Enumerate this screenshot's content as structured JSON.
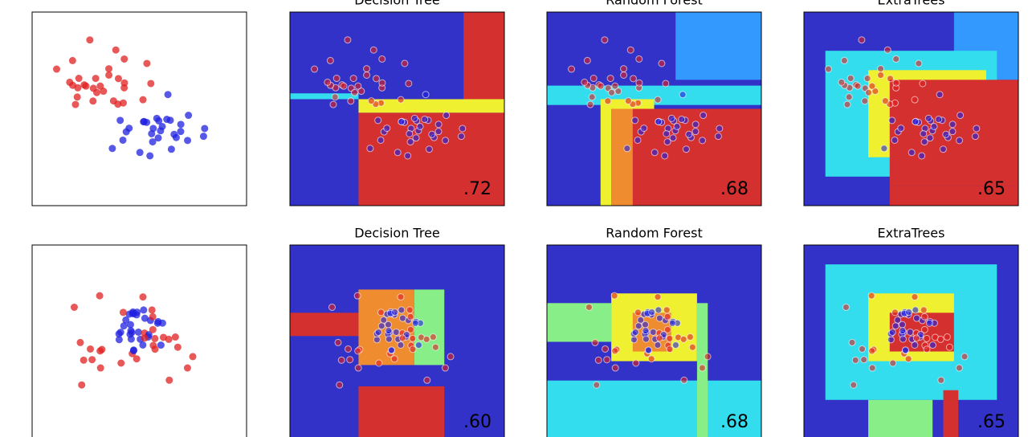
{
  "rows": [
    {
      "panels": [
        {
          "title": "Decision Tree",
          "score": ".72"
        },
        {
          "title": "Random Forest",
          "score": ".68"
        },
        {
          "title": "ExtraTrees",
          "score": ".65"
        }
      ]
    },
    {
      "panels": [
        {
          "title": "Decision Tree",
          "score": ".60"
        },
        {
          "title": "Random Forest",
          "score": ".68"
        },
        {
          "title": "ExtraTrees",
          "score": ".65"
        }
      ]
    }
  ]
}
